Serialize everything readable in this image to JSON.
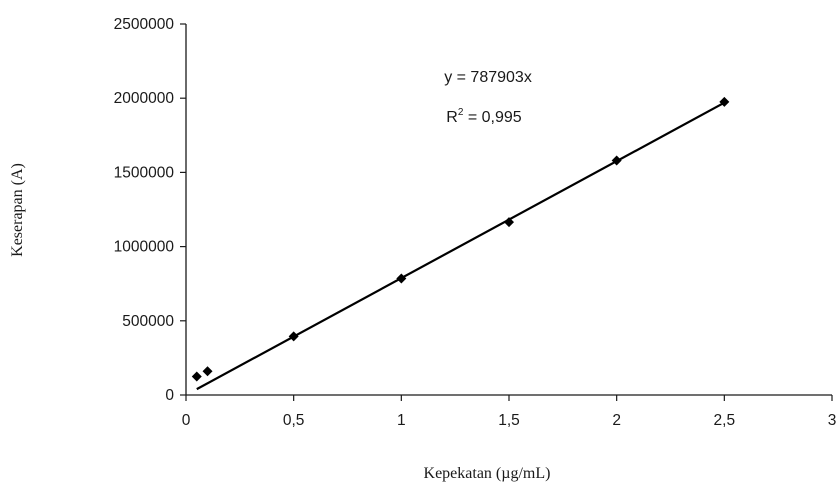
{
  "chart_data": {
    "type": "scatter",
    "xlabel": "Kepekatan (µg/mL)",
    "ylabel": "Keserapan (A)",
    "xlim": [
      0,
      3
    ],
    "ylim": [
      0,
      2500000
    ],
    "x_ticks": [
      0,
      0.5,
      1,
      1.5,
      2,
      2.5,
      3
    ],
    "x_tick_labels": [
      "0",
      "0,5",
      "1",
      "1,5",
      "2",
      "2,5",
      "3"
    ],
    "y_ticks": [
      0,
      500000,
      1000000,
      1500000,
      2000000,
      2500000
    ],
    "y_tick_labels": [
      "0",
      "500000",
      "1000000",
      "1500000",
      "2000000",
      "2500000"
    ],
    "grid": false,
    "series": [
      {
        "marker": "diamond",
        "color": "#000000",
        "points": [
          {
            "x": 0.05,
            "y": 125000
          },
          {
            "x": 0.1,
            "y": 160000
          },
          {
            "x": 0.5,
            "y": 395000
          },
          {
            "x": 1.0,
            "y": 785000
          },
          {
            "x": 1.5,
            "y": 1165000
          },
          {
            "x": 2.0,
            "y": 1580000
          },
          {
            "x": 2.5,
            "y": 1975000
          }
        ]
      }
    ],
    "trendline": {
      "type": "linear",
      "slope": 787903,
      "intercept": 0,
      "x_range": [
        0.05,
        2.5
      ],
      "color": "#000000"
    },
    "annotations": {
      "equation": "y = 787903x",
      "r_label": "R",
      "r_superscript": "2",
      "r_value": " = 0,995"
    }
  }
}
